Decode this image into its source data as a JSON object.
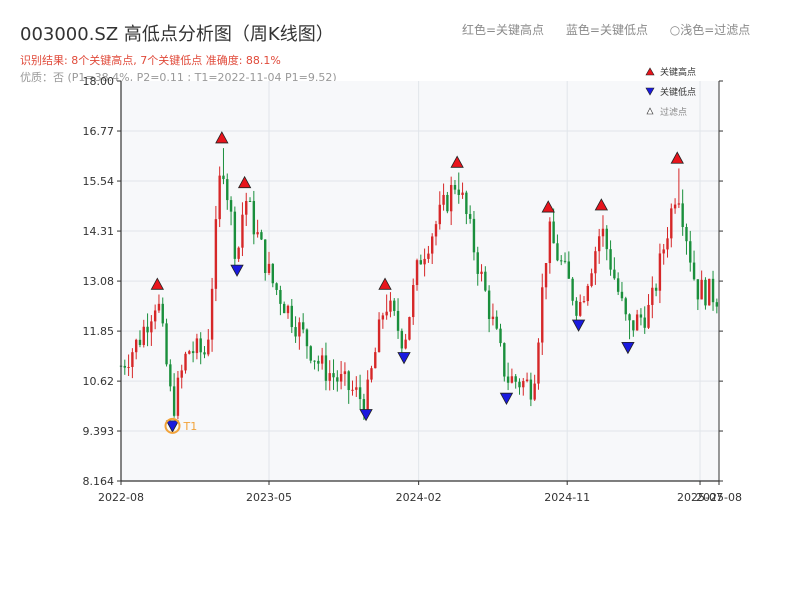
{
  "chart_title": "003000.SZ 高低点分析图（周K线图）",
  "subtitle": "识别结果: 8个关键高点, 7个关键低点   准确度: 88.1%",
  "quality_note": "优质：否 (P1=38.4%, P2=0.11 ; T1=2022-11-04 P1=9.52)",
  "top_legend": [
    "红色=关键高点",
    "蓝色=关键低点",
    "○浅色=过滤点"
  ],
  "colors": {
    "up": "#d62728",
    "down": "#1a8f3c",
    "high_marker": "#e8141c",
    "low_marker": "#1a1adf",
    "t1_ring": "#f2a33a",
    "plot_bg": "#f7f8fa",
    "grid": "#e1e5ea"
  },
  "chart_data": {
    "type": "candlestick",
    "title": "003000.SZ 高低点分析图（周K线图）",
    "y_ticks": [
      "18.00",
      "16.77",
      "15.54",
      "14.31",
      "13.08",
      "11.85",
      "10.62",
      "9.393",
      "8.164"
    ],
    "ylim": [
      8.164,
      18.0
    ],
    "x_ticks": [
      "2022-08",
      "2023-05",
      "2024-02",
      "2024-11",
      "2025-07",
      "2025-08"
    ],
    "xlim": [
      "2022-08-01",
      "2025-08-08"
    ],
    "grid": true,
    "legend": {
      "position": "top-right",
      "entries": [
        "关键高点",
        "关键低点",
        "过滤点"
      ]
    },
    "key_highs": [
      {
        "date": "2022-10-07",
        "price": 13.0
      },
      {
        "date": "2023-02-03",
        "price": 16.6
      },
      {
        "date": "2023-03-17",
        "price": 15.5
      },
      {
        "date": "2023-12-01",
        "price": 13.0
      },
      {
        "date": "2024-04-12",
        "price": 16.0
      },
      {
        "date": "2024-09-27",
        "price": 14.9
      },
      {
        "date": "2025-01-03",
        "price": 14.95
      },
      {
        "date": "2025-05-23",
        "price": 16.1
      }
    ],
    "key_lows": [
      {
        "date": "2022-11-04",
        "price": 9.52
      },
      {
        "date": "2023-03-03",
        "price": 13.35
      },
      {
        "date": "2023-10-27",
        "price": 9.8
      },
      {
        "date": "2024-01-05",
        "price": 11.2
      },
      {
        "date": "2024-07-12",
        "price": 10.2
      },
      {
        "date": "2024-11-22",
        "price": 12.0
      },
      {
        "date": "2025-02-21",
        "price": 11.45
      }
    ],
    "annotation": {
      "label": "T1",
      "date": "2022-11-04",
      "price": 9.52
    },
    "path_points": [
      {
        "date": "2022-08-01",
        "price": 11.0
      },
      {
        "date": "2022-09-02",
        "price": 11.6
      },
      {
        "date": "2022-10-07",
        "price": 12.7
      },
      {
        "date": "2022-11-04",
        "price": 9.9
      },
      {
        "date": "2022-12-02",
        "price": 11.4
      },
      {
        "date": "2023-01-06",
        "price": 11.3
      },
      {
        "date": "2023-02-03",
        "price": 16.2
      },
      {
        "date": "2023-03-03",
        "price": 13.6
      },
      {
        "date": "2023-03-17",
        "price": 15.2
      },
      {
        "date": "2023-05-05",
        "price": 13.1
      },
      {
        "date": "2023-08-04",
        "price": 11.0
      },
      {
        "date": "2023-10-27",
        "price": 10.1
      },
      {
        "date": "2023-12-01",
        "price": 12.6
      },
      {
        "date": "2024-01-05",
        "price": 11.6
      },
      {
        "date": "2024-02-02",
        "price": 13.6
      },
      {
        "date": "2024-04-12",
        "price": 15.6
      },
      {
        "date": "2024-05-24",
        "price": 13.3
      },
      {
        "date": "2024-07-12",
        "price": 10.7
      },
      {
        "date": "2024-08-30",
        "price": 10.5
      },
      {
        "date": "2024-09-27",
        "price": 14.3
      },
      {
        "date": "2024-11-22",
        "price": 12.4
      },
      {
        "date": "2025-01-03",
        "price": 14.4
      },
      {
        "date": "2025-02-21",
        "price": 11.9
      },
      {
        "date": "2025-04-04",
        "price": 12.4
      },
      {
        "date": "2025-05-23",
        "price": 15.5
      },
      {
        "date": "2025-06-27",
        "price": 12.9
      },
      {
        "date": "2025-08-08",
        "price": 12.7
      }
    ]
  }
}
